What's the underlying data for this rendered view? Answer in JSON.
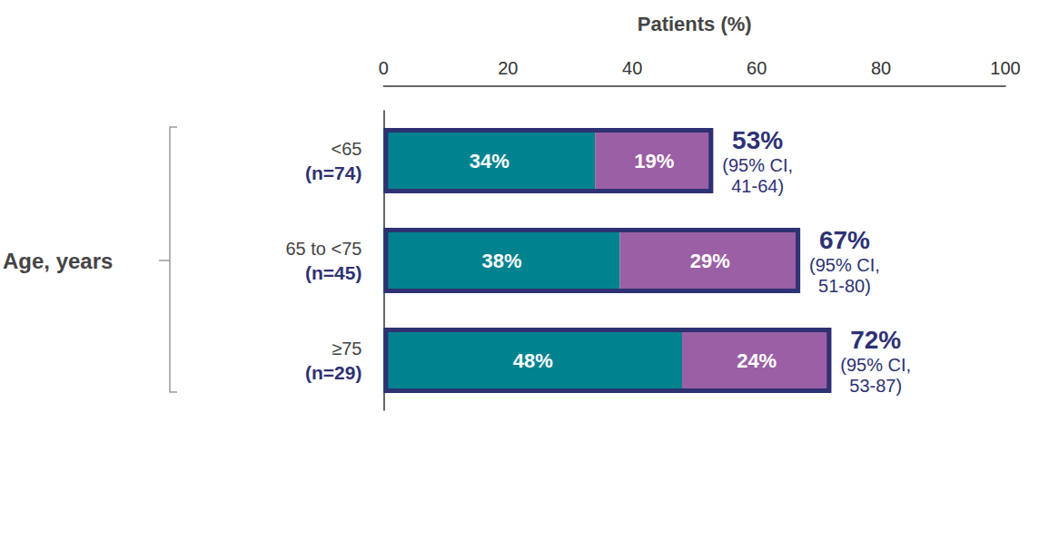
{
  "chart_data": {
    "type": "bar",
    "orientation": "horizontal",
    "stacked": true,
    "data_labels": true,
    "grid": false,
    "xlabel": "Patients (%)",
    "ylabel": "Age, years",
    "categories": [
      "<65",
      "65 to <75",
      "≥75"
    ],
    "category_counts": [
      "(n=74)",
      "(n=45)",
      "(n=29)"
    ],
    "series": [
      {
        "color": "#00838f",
        "values": [
          34,
          38,
          48
        ],
        "value_labels": [
          "34%",
          "38%",
          "48%"
        ]
      },
      {
        "color": "#9b5fa5",
        "values": [
          19,
          29,
          24
        ],
        "value_labels": [
          "19%",
          "29%",
          "24%"
        ]
      }
    ],
    "totals": {
      "color": "#2e3173",
      "values": [
        53,
        67,
        72
      ],
      "value_labels": [
        "53%",
        "67%",
        "72%"
      ],
      "ci_labels": [
        "(95% CI, 41-64)",
        "(95% CI, 51-80)",
        "(95% CI, 53-87)"
      ]
    },
    "xlim": [
      0,
      100
    ],
    "xticks": [
      0,
      20,
      40,
      60,
      80,
      100
    ]
  }
}
